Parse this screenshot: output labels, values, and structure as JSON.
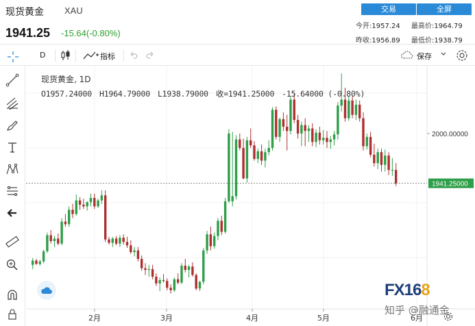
{
  "header": {
    "title": "现货黄金",
    "symbol": "XAU",
    "price": "1941.25",
    "change": "-15.64(-0.80%)",
    "trade_label": "交易",
    "fullscreen_label": "全屏",
    "stats": {
      "today_open_label": "今开:",
      "today_open": "1957.24",
      "high_label": "最高价:",
      "high": "1964.79",
      "prev_close_label": "昨收:",
      "prev_close": "1956.89",
      "low_label": "最低价:",
      "low": "1938.79"
    }
  },
  "toolbar": {
    "interval": "D",
    "indicators_label": "指标",
    "save_label": "保存"
  },
  "legend": {
    "name": "现货黄金, 1D",
    "open": "O1957.24000",
    "high": "H1964.79000",
    "low": "L1938.79000",
    "close": "收=1941.25000",
    "change": "-15.64000 (-0.80%)"
  },
  "colors": {
    "up": "#2e9e48",
    "down": "#ad2f2f",
    "accent": "#2a8ad8"
  },
  "chart_data": {
    "type": "candlestick",
    "y_axis_labels": [
      {
        "value": 2000,
        "label": "2000.00000"
      }
    ],
    "last_price": {
      "value": 1941.25,
      "label": "1941.25000"
    },
    "x_axis_labels": [
      "2月",
      "3月",
      "4月",
      "5月",
      "6月"
    ],
    "ylim": [
      1793,
      2080
    ],
    "candles": [
      [
        1845,
        1853,
        1840,
        1850
      ],
      [
        1850,
        1852,
        1845,
        1846
      ],
      [
        1846,
        1851,
        1844,
        1849
      ],
      [
        1849,
        1863,
        1847,
        1861
      ],
      [
        1861,
        1883,
        1859,
        1880
      ],
      [
        1880,
        1886,
        1870,
        1873
      ],
      [
        1873,
        1879,
        1866,
        1876
      ],
      [
        1876,
        1882,
        1868,
        1870
      ],
      [
        1870,
        1900,
        1868,
        1896
      ],
      [
        1896,
        1905,
        1890,
        1893
      ],
      [
        1893,
        1914,
        1890,
        1910
      ],
      [
        1910,
        1917,
        1900,
        1905
      ],
      [
        1905,
        1928,
        1903,
        1921
      ],
      [
        1921,
        1925,
        1910,
        1916
      ],
      [
        1916,
        1923,
        1911,
        1914
      ],
      [
        1914,
        1920,
        1909,
        1919
      ],
      [
        1919,
        1929,
        1914,
        1924
      ],
      [
        1924,
        1929,
        1911,
        1914
      ],
      [
        1914,
        1923,
        1912,
        1921
      ],
      [
        1921,
        1933,
        1917,
        1927
      ],
      [
        1927,
        1933,
        1872,
        1875
      ],
      [
        1875,
        1878,
        1869,
        1871
      ],
      [
        1871,
        1878,
        1866,
        1876
      ],
      [
        1876,
        1879,
        1868,
        1870
      ],
      [
        1870,
        1880,
        1866,
        1877
      ],
      [
        1877,
        1881,
        1869,
        1872
      ],
      [
        1872,
        1878,
        1865,
        1868
      ],
      [
        1868,
        1874,
        1858,
        1860
      ],
      [
        1860,
        1866,
        1855,
        1862
      ],
      [
        1862,
        1866,
        1849,
        1852
      ],
      [
        1852,
        1856,
        1838,
        1841
      ],
      [
        1841,
        1847,
        1833,
        1839
      ],
      [
        1839,
        1845,
        1831,
        1840
      ],
      [
        1840,
        1845,
        1828,
        1831
      ],
      [
        1831,
        1835,
        1820,
        1823
      ],
      [
        1823,
        1830,
        1814,
        1827
      ],
      [
        1827,
        1834,
        1824,
        1826
      ],
      [
        1826,
        1829,
        1815,
        1818
      ],
      [
        1818,
        1822,
        1811,
        1815
      ],
      [
        1815,
        1830,
        1813,
        1828
      ],
      [
        1828,
        1835,
        1822,
        1824
      ],
      [
        1824,
        1847,
        1822,
        1844
      ],
      [
        1844,
        1852,
        1836,
        1839
      ],
      [
        1839,
        1845,
        1830,
        1843
      ],
      [
        1843,
        1848,
        1831,
        1833
      ],
      [
        1833,
        1835,
        1815,
        1817
      ],
      [
        1817,
        1826,
        1814,
        1825
      ],
      [
        1825,
        1865,
        1822,
        1862
      ],
      [
        1862,
        1885,
        1858,
        1881
      ],
      [
        1881,
        1890,
        1862,
        1867
      ],
      [
        1867,
        1883,
        1864,
        1879
      ],
      [
        1879,
        1900,
        1874,
        1897
      ],
      [
        1897,
        1903,
        1880,
        1884
      ],
      [
        1884,
        1924,
        1882,
        1920
      ],
      [
        1920,
        2005,
        1918,
        2000
      ],
      [
        1920,
        2002,
        1914,
        1926
      ],
      [
        1926,
        1998,
        1922,
        1993
      ],
      [
        1993,
        2000,
        1980,
        1983
      ],
      [
        1983,
        1994,
        1946,
        1947
      ],
      [
        1947,
        1996,
        1942,
        1992
      ],
      [
        1992,
        2006,
        1983,
        1986
      ],
      [
        1986,
        1991,
        1968,
        1970
      ],
      [
        1970,
        1982,
        1965,
        1979
      ],
      [
        1979,
        1987,
        1963,
        1968
      ],
      [
        1968,
        1982,
        1960,
        1978
      ],
      [
        1978,
        1992,
        1974,
        1983
      ],
      [
        1983,
        2031,
        1980,
        2028
      ],
      [
        2028,
        2032,
        1993,
        1996
      ],
      [
        1996,
        2019,
        1990,
        2017
      ],
      [
        2017,
        2025,
        2003,
        2008
      ],
      [
        2008,
        2022,
        1980,
        2003
      ],
      [
        2003,
        2044,
        1999,
        2040
      ],
      [
        2040,
        2048,
        2012,
        2016
      ],
      [
        2016,
        2022,
        1994,
        2000
      ],
      [
        2000,
        2014,
        1985,
        2010
      ],
      [
        2010,
        2018,
        1985,
        2003
      ],
      [
        2003,
        2010,
        1990,
        2006
      ],
      [
        2006,
        2012,
        1985,
        1990
      ],
      [
        1990,
        2005,
        1984,
        2001
      ],
      [
        2001,
        2008,
        1987,
        1992
      ],
      [
        1992,
        2004,
        1987,
        1995
      ],
      [
        1995,
        2003,
        1983,
        1990
      ],
      [
        1990,
        1997,
        1982,
        1993
      ],
      [
        1993,
        2003,
        1986,
        1999
      ],
      [
        1999,
        2037,
        1993,
        2033
      ],
      [
        2033,
        2071,
        2026,
        2040
      ],
      [
        2040,
        2054,
        2014,
        2018
      ],
      [
        2018,
        2044,
        2015,
        2039
      ],
      [
        2039,
        2044,
        2018,
        2022
      ],
      [
        2022,
        2040,
        2016,
        2034
      ],
      [
        2034,
        2039,
        2014,
        2018
      ],
      [
        2018,
        2025,
        1980,
        1985
      ],
      [
        1985,
        2000,
        1981,
        1996
      ],
      [
        1996,
        2002,
        1972,
        1975
      ],
      [
        1975,
        1988,
        1961,
        1965
      ],
      [
        1965,
        1982,
        1958,
        1978
      ],
      [
        1978,
        1982,
        1955,
        1963
      ],
      [
        1963,
        1981,
        1955,
        1974
      ],
      [
        1974,
        1978,
        1951,
        1957
      ],
      [
        1957,
        1971,
        1950,
        1957
      ],
      [
        1957,
        1965,
        1938,
        1941
      ]
    ]
  }
}
